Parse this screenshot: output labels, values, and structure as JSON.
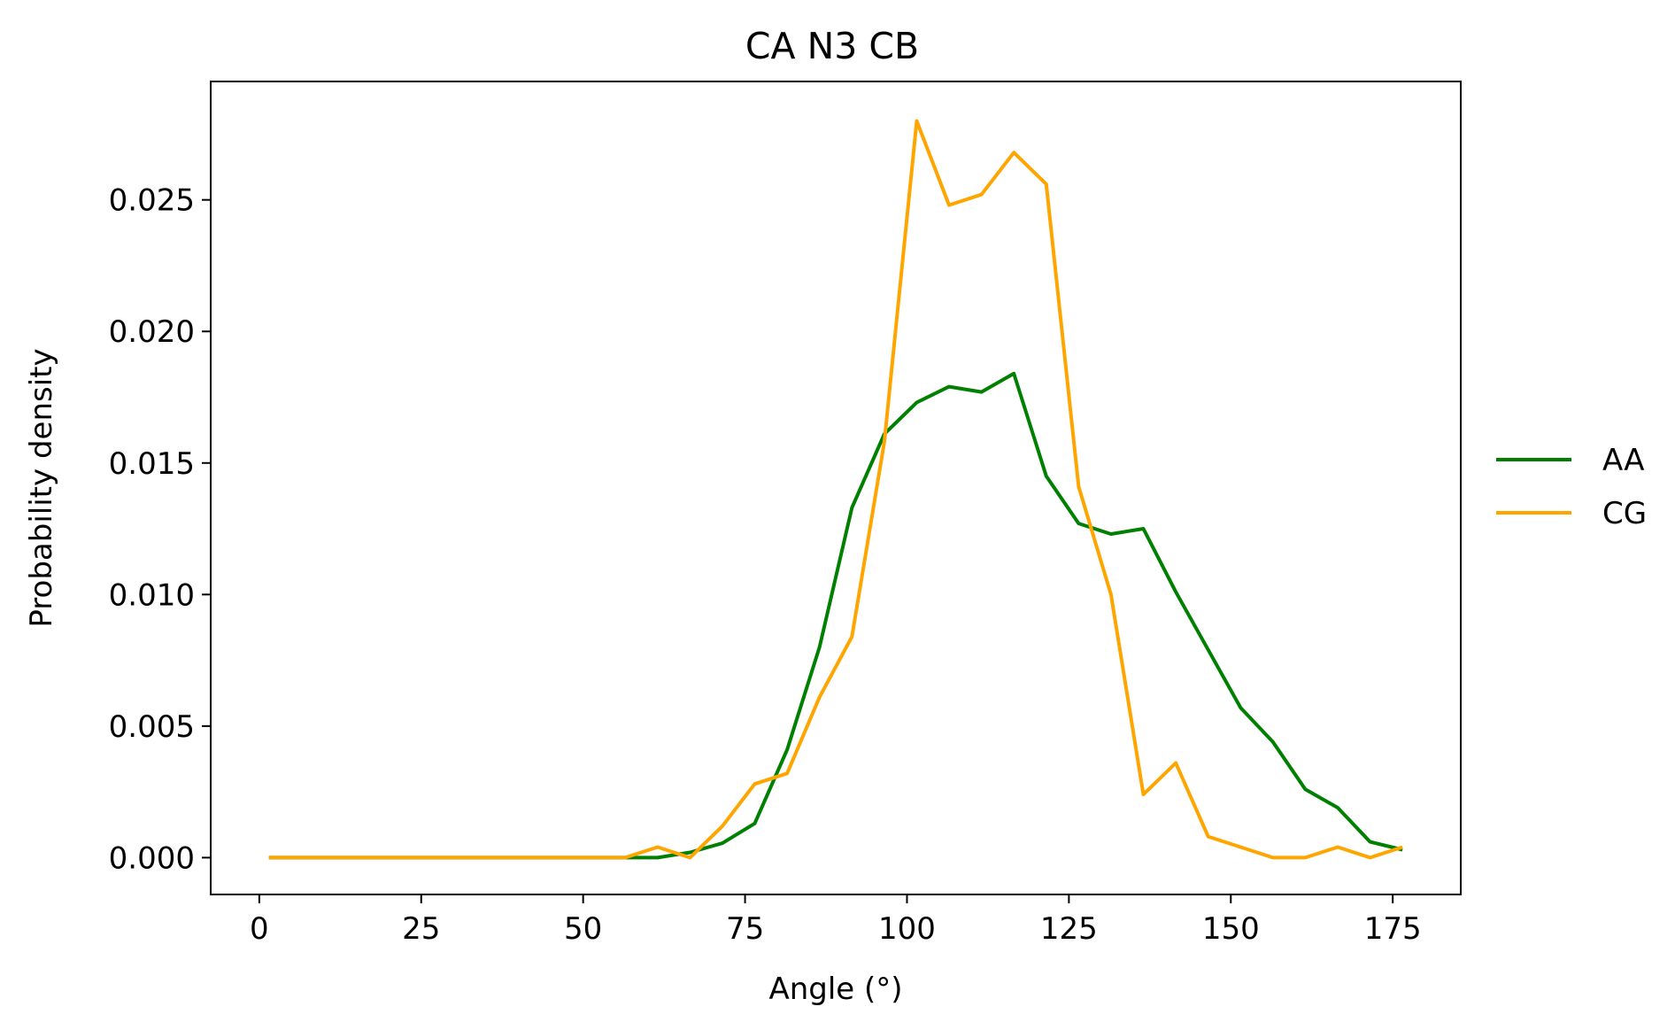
{
  "chart_data": {
    "type": "line",
    "title": "CA N3 CB",
    "xlabel": "Angle (°)",
    "ylabel": "Probability density",
    "xlim": [
      -7.5,
      185.5
    ],
    "ylim": [
      -0.0014,
      0.0295
    ],
    "xticks": [
      0,
      25,
      50,
      75,
      100,
      125,
      150,
      175
    ],
    "xtick_labels": [
      "0",
      "25",
      "50",
      "75",
      "100",
      "125",
      "150",
      "175"
    ],
    "yticks": [
      0.0,
      0.005,
      0.01,
      0.015,
      0.02,
      0.025
    ],
    "ytick_labels": [
      "0.000",
      "0.005",
      "0.010",
      "0.015",
      "0.020",
      "0.025"
    ],
    "grid": false,
    "legend_position": "right",
    "x": [
      1.5,
      6.5,
      11.5,
      16.5,
      21.5,
      26.5,
      31.5,
      36.5,
      41.5,
      46.5,
      51.5,
      56.5,
      61.5,
      66.5,
      71.5,
      76.5,
      81.5,
      86.5,
      91.5,
      96.5,
      101.5,
      106.5,
      111.5,
      116.5,
      121.5,
      126.5,
      131.5,
      136.5,
      141.5,
      146.5,
      151.5,
      156.5,
      161.5,
      166.5,
      171.5,
      176.5
    ],
    "series": [
      {
        "name": "AA",
        "color": "#008000",
        "values": [
          0,
          0,
          0,
          0,
          0,
          0,
          0,
          0,
          0,
          0,
          0,
          0,
          0.0,
          0.0002,
          0.00055,
          0.0013,
          0.0041,
          0.008,
          0.0133,
          0.0161,
          0.0173,
          0.0179,
          0.0177,
          0.0184,
          0.0145,
          0.0127,
          0.0123,
          0.0125,
          0.0101,
          0.0079,
          0.0057,
          0.0044,
          0.0026,
          0.0019,
          0.0006,
          0.0003
        ]
      },
      {
        "name": "CG",
        "color": "#FFA500",
        "values": [
          0,
          0,
          0,
          0,
          0,
          0,
          0,
          0,
          0,
          0,
          0,
          0,
          0.0004,
          0.0,
          0.0012,
          0.0028,
          0.0032,
          0.0061,
          0.0084,
          0.0158,
          0.028,
          0.0248,
          0.0252,
          0.0268,
          0.0256,
          0.0141,
          0.01,
          0.0024,
          0.0036,
          0.0008,
          0.0004,
          0.0,
          0.0,
          0.0004,
          0.0,
          0.0004
        ]
      }
    ]
  }
}
